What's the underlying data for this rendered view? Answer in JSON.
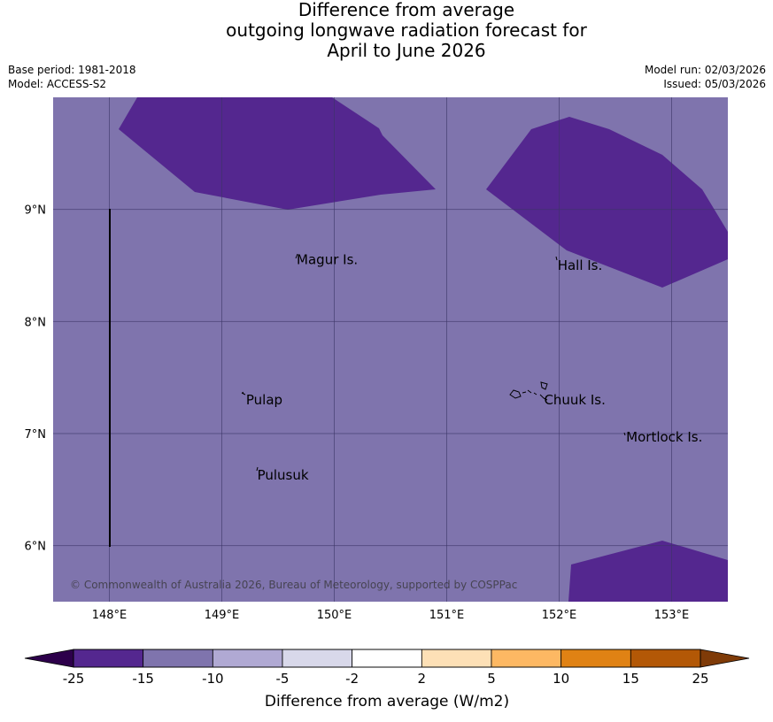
{
  "header": {
    "title_lines": [
      "Difference from average",
      "outgoing longwave radiation forecast for",
      "April to June 2026"
    ],
    "base_period": "Base period: 1981-2018",
    "model": "Model: ACCESS-S2",
    "model_run": "Model run: 02/03/2026",
    "issued": "Issued: 05/03/2026"
  },
  "map": {
    "lon_range": [
      147.5,
      153.5
    ],
    "lat_range": [
      5.5,
      10.0
    ],
    "lon_ticks": [
      "148°E",
      "149°E",
      "150°E",
      "151°E",
      "152°E",
      "153°E"
    ],
    "lat_ticks": [
      "9°N",
      "8°N",
      "7°N",
      "6°N"
    ],
    "background_color": "#7f74ad",
    "anomaly_color": "#54278f",
    "places": [
      {
        "name": "Magur Is.",
        "lon": 149.65,
        "lat": 8.55
      },
      {
        "name": "Hall Is.",
        "lon": 151.97,
        "lat": 8.5
      },
      {
        "name": "Pulap",
        "lon": 149.2,
        "lat": 7.3
      },
      {
        "name": "Chuuk Is.",
        "lon": 151.85,
        "lat": 7.3
      },
      {
        "name": "Mortlock Is.",
        "lon": 152.58,
        "lat": 6.97
      },
      {
        "name": "Pulusuk",
        "lon": 149.3,
        "lat": 6.63
      }
    ],
    "copyright": "© Commonwealth of Australia 2026, Bureau of Meteorology, supported by COSPPac"
  },
  "legend": {
    "title": "Difference from average (W/m2)",
    "tick_labels": [
      "-25",
      "-15",
      "-10",
      "-5",
      "-2",
      "2",
      "5",
      "10",
      "15",
      "25"
    ],
    "colors": [
      "#54278f",
      "#7f74ad",
      "#b0a9d3",
      "#d8d8ea",
      "#ffffff",
      "#fde0b6",
      "#fdb863",
      "#e08214",
      "#b35806"
    ],
    "low_color": "#2d004b",
    "high_color": "#7f3b08"
  }
}
